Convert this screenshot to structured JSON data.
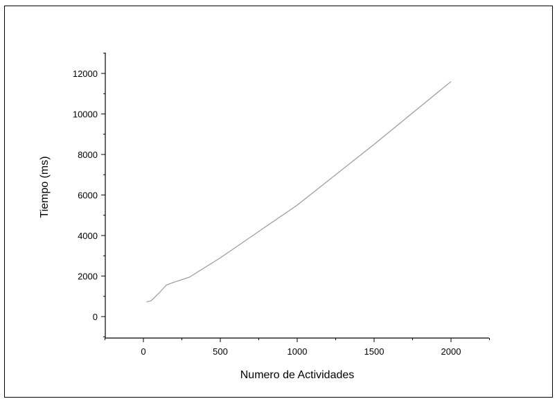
{
  "chart_data": {
    "type": "line",
    "title": "",
    "xlabel": "Numero de Actividades",
    "ylabel": "Tiempo (ms)",
    "xlim": [
      -250,
      2250
    ],
    "ylim": [
      -1000,
      13000
    ],
    "xticks": [
      0,
      500,
      1000,
      1500,
      2000
    ],
    "xtick_labels": [
      "0",
      "500",
      "1000",
      "1500",
      "2000"
    ],
    "yticks": [
      0,
      2000,
      4000,
      6000,
      8000,
      10000,
      12000
    ],
    "ytick_labels": [
      "0",
      "2000",
      "4000",
      "6000",
      "8000",
      "10000",
      "12000"
    ],
    "grid": false,
    "legend": "none",
    "series": [
      {
        "color": "#9a9a9a",
        "x": [
          20,
          50,
          100,
          150,
          200,
          300,
          500,
          1000,
          1500,
          2000
        ],
        "y": [
          720,
          780,
          1150,
          1560,
          1700,
          1950,
          2900,
          5500,
          8500,
          11600
        ]
      }
    ]
  }
}
